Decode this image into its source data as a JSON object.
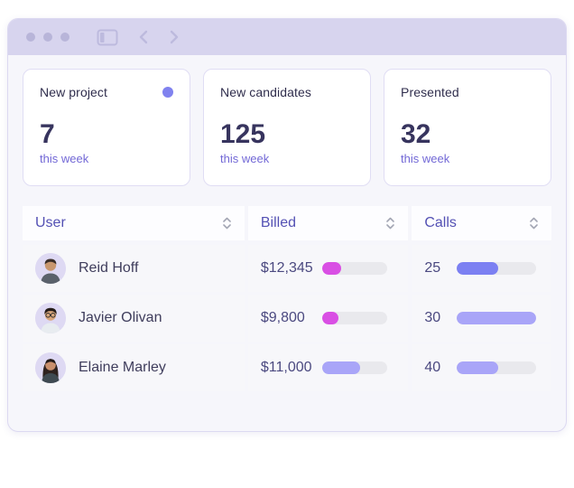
{
  "window": {
    "controls": {
      "dot_count": 3
    },
    "nav_icons": [
      "sidebar-icon",
      "back-icon",
      "forward-icon"
    ]
  },
  "stats": [
    {
      "label": "New project",
      "value": "7",
      "period": "this week",
      "has_dot": true,
      "dot_color": "#8082ef"
    },
    {
      "label": "New candidates",
      "value": "125",
      "period": "this week",
      "has_dot": false,
      "dot_color": ""
    },
    {
      "label": "Presented",
      "value": "32",
      "period": "this week",
      "has_dot": false,
      "dot_color": ""
    }
  ],
  "table": {
    "columns": [
      {
        "label": "User",
        "sortable": true
      },
      {
        "label": "Billed",
        "sortable": true
      },
      {
        "label": "Calls",
        "sortable": true
      }
    ],
    "rows": [
      {
        "name": "Reid Hoff",
        "billed": "$12,345",
        "billed_bar": {
          "pct": 30,
          "color": "#d94fe4"
        },
        "calls": "25",
        "calls_bar": {
          "pct": 52,
          "color": "#7c80f2"
        }
      },
      {
        "name": "Javier Olivan",
        "billed": "$9,800",
        "billed_bar": {
          "pct": 25,
          "color": "#d94fe4"
        },
        "calls": "30",
        "calls_bar": {
          "pct": 100,
          "color": "#a9a5f8"
        }
      },
      {
        "name": "Elaine Marley",
        "billed": "$11,000",
        "billed_bar": {
          "pct": 58,
          "color": "#a9a5f8"
        },
        "calls": "40",
        "calls_bar": {
          "pct": 52,
          "color": "#a9a5f8"
        }
      }
    ]
  },
  "colors": {
    "titlebar": "#d7d4ee",
    "window_bg": "#f6f6fb",
    "accent_indigo": "#5451b4",
    "magenta_bar": "#d94fe4",
    "purple_bar": "#7c80f2",
    "light_purple_bar": "#a9a5f8",
    "bar_track": "#e9e9ed"
  }
}
